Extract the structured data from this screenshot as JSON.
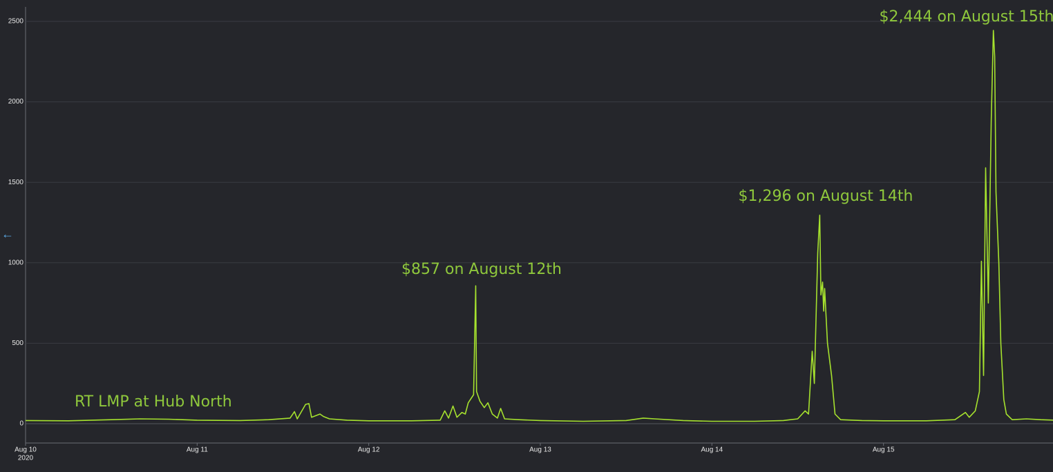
{
  "chart_data": {
    "type": "line",
    "color": "#a6e22e",
    "xlim": [
      "2020-08-10T00:00",
      "2020-08-16T00:00"
    ],
    "ylim": [
      -120,
      2590
    ],
    "yticks": [
      0,
      500,
      1000,
      1500,
      2000,
      2500
    ],
    "xticks": [
      {
        "value": "2020-08-10T00:00",
        "label": "Aug 10"
      },
      {
        "value": "2020-08-11T00:00",
        "label": "Aug 11"
      },
      {
        "value": "2020-08-12T00:00",
        "label": "Aug 12"
      },
      {
        "value": "2020-08-13T00:00",
        "label": "Aug 13"
      },
      {
        "value": "2020-08-14T00:00",
        "label": "Aug 14"
      },
      {
        "value": "2020-08-15T00:00",
        "label": "Aug 15"
      }
    ],
    "xtick_year": "2020",
    "grid": true,
    "annotations": [
      "RT LMP at Hub North",
      "$857 on August 12th",
      "$1,296 on August 14th",
      "$2,444 on August 15th"
    ],
    "x": [
      "2020-08-10T00:00",
      "2020-08-10T06:00",
      "2020-08-10T12:00",
      "2020-08-10T16:00",
      "2020-08-10T20:00",
      "2020-08-11T00:00",
      "2020-08-11T06:00",
      "2020-08-11T10:00",
      "2020-08-11T13:00",
      "2020-08-11T13:37",
      "2020-08-11T14:00",
      "2020-08-11T15:10",
      "2020-08-11T15:38",
      "2020-08-11T16:00",
      "2020-08-11T17:11",
      "2020-08-11T17:40",
      "2020-08-11T18:30",
      "2020-08-11T21:00",
      "2020-08-12T00:00",
      "2020-08-12T06:00",
      "2020-08-12T10:00",
      "2020-08-12T10:38",
      "2020-08-12T11:10",
      "2020-08-12T11:47",
      "2020-08-12T12:20",
      "2020-08-12T13:02",
      "2020-08-12T13:30",
      "2020-08-12T13:55",
      "2020-08-12T14:40",
      "2020-08-12T14:58",
      "2020-08-12T15:05",
      "2020-08-12T15:33",
      "2020-08-12T16:10",
      "2020-08-12T16:40",
      "2020-08-12T17:17",
      "2020-08-12T18:00",
      "2020-08-12T18:27",
      "2020-08-12T19:00",
      "2020-08-12T21:00",
      "2020-08-13T00:00",
      "2020-08-13T06:00",
      "2020-08-13T12:00",
      "2020-08-13T14:24",
      "2020-08-13T16:00",
      "2020-08-13T20:00",
      "2020-08-14T00:00",
      "2020-08-14T06:00",
      "2020-08-14T10:00",
      "2020-08-14T12:00",
      "2020-08-14T13:02",
      "2020-08-14T13:31",
      "2020-08-14T14:02",
      "2020-08-14T14:20",
      "2020-08-14T14:48",
      "2020-08-14T15:05",
      "2020-08-14T15:15",
      "2020-08-14T15:29",
      "2020-08-14T15:38",
      "2020-08-14T15:46",
      "2020-08-14T16:10",
      "2020-08-14T16:44",
      "2020-08-14T17:13",
      "2020-08-14T18:00",
      "2020-08-14T21:00",
      "2020-08-15T00:00",
      "2020-08-15T06:00",
      "2020-08-15T10:00",
      "2020-08-15T11:28",
      "2020-08-15T12:00",
      "2020-08-15T12:50",
      "2020-08-15T13:25",
      "2020-08-15T13:42",
      "2020-08-15T14:00",
      "2020-08-15T14:17",
      "2020-08-15T14:40",
      "2020-08-15T15:04",
      "2020-08-15T15:22",
      "2020-08-15T15:33",
      "2020-08-15T15:44",
      "2020-08-15T16:08",
      "2020-08-15T16:25",
      "2020-08-15T16:50",
      "2020-08-15T17:11",
      "2020-08-15T18:00",
      "2020-08-15T20:00",
      "2020-08-15T22:00",
      "2020-08-16T00:00"
    ],
    "values": [
      20,
      18,
      25,
      30,
      28,
      22,
      20,
      25,
      35,
      75,
      30,
      120,
      125,
      40,
      60,
      45,
      30,
      22,
      18,
      18,
      22,
      80,
      35,
      110,
      40,
      70,
      60,
      130,
      180,
      857,
      200,
      140,
      100,
      130,
      60,
      35,
      95,
      30,
      25,
      20,
      15,
      20,
      35,
      30,
      20,
      15,
      15,
      20,
      30,
      80,
      60,
      450,
      250,
      1060,
      1296,
      800,
      880,
      700,
      840,
      500,
      300,
      60,
      25,
      20,
      18,
      18,
      25,
      70,
      40,
      80,
      200,
      1010,
      300,
      1590,
      750,
      1880,
      2444,
      2280,
      1440,
      1000,
      500,
      150,
      60,
      25,
      30,
      25,
      22
    ]
  }
}
